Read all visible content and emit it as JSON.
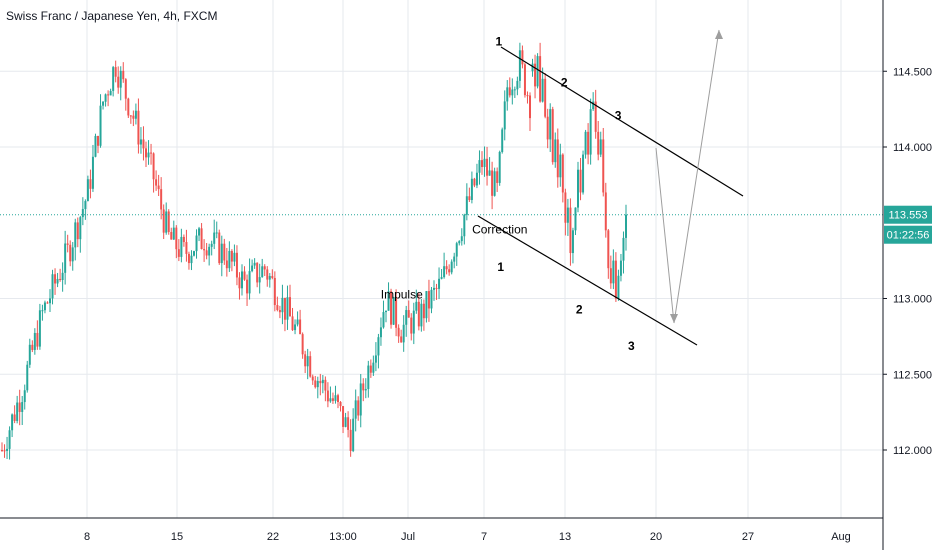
{
  "chart_data": {
    "type": "candlestick",
    "title": "Swiss Franc / Japanese Yen, 4h, FXCM",
    "x_ticks": [
      "8",
      "15",
      "22",
      "13:00",
      "Jul",
      "7",
      "13",
      "20",
      "27",
      "Aug"
    ],
    "y_ticks": [
      "114.500",
      "114.000",
      "113.000",
      "112.500",
      "112.000"
    ],
    "ylim": [
      111.6,
      115.0
    ],
    "grid": true,
    "current_price": {
      "value": 113.553,
      "label": "113.553",
      "countdown": "01:22:56"
    },
    "colors": {
      "up": "#26a69a",
      "down": "#ef5350",
      "price_line": "#26a69a",
      "grid": "#e6e9ee",
      "lines": "#000000",
      "projection": "#9e9e9e"
    },
    "candle_count": 210,
    "anchors": [
      [
        0,
        112.0
      ],
      [
        8,
        112.4
      ],
      [
        16,
        112.9
      ],
      [
        26,
        113.3
      ],
      [
        34,
        113.7
      ],
      [
        40,
        114.3
      ],
      [
        45,
        114.55
      ],
      [
        54,
        114.1
      ],
      [
        60,
        113.8
      ],
      [
        66,
        113.4
      ],
      [
        72,
        113.3
      ],
      [
        80,
        113.4
      ],
      [
        88,
        113.3
      ],
      [
        96,
        113.1
      ],
      [
        104,
        113.2
      ],
      [
        110,
        113.0
      ],
      [
        116,
        112.8
      ],
      [
        124,
        112.5
      ],
      [
        132,
        112.3
      ],
      [
        138,
        112.1
      ],
      [
        146,
        112.6
      ],
      [
        152,
        113.0
      ],
      [
        158,
        112.8
      ],
      [
        166,
        112.9
      ],
      [
        174,
        113.1
      ],
      [
        182,
        113.5
      ],
      [
        190,
        113.9
      ],
      [
        196,
        113.7
      ],
      [
        200,
        114.4
      ],
      [
        205,
        114.55
      ],
      [
        209,
        114.3
      ]
    ],
    "series": [
      {
        "name": "",
        "points": [
          [
            114.5,
            114.55
          ],
          [
            114.55,
            114.4
          ],
          [
            114.4,
            114.6
          ],
          [
            114.6,
            114.3
          ],
          [
            114.3,
            114.45
          ],
          [
            114.45,
            114.2
          ],
          [
            114.2,
            114.05
          ],
          [
            114.05,
            114.25
          ],
          [
            114.25,
            113.9
          ],
          [
            113.9,
            114.05
          ],
          [
            114.05,
            113.8
          ],
          [
            113.8,
            113.95
          ],
          [
            113.95,
            113.7
          ],
          [
            113.7,
            113.5
          ],
          [
            113.5,
            113.6
          ],
          [
            113.6,
            113.3
          ],
          [
            113.3,
            113.45
          ],
          [
            113.45,
            113.6
          ],
          [
            113.6,
            113.85
          ],
          [
            113.85,
            113.7
          ],
          [
            113.7,
            113.95
          ],
          [
            113.95,
            114.1
          ],
          [
            114.1,
            113.95
          ],
          [
            113.95,
            114.25
          ],
          [
            114.25,
            114.3
          ],
          [
            114.3,
            114.1
          ],
          [
            114.1,
            113.95
          ],
          [
            113.95,
            114.05
          ],
          [
            114.05,
            113.7
          ],
          [
            113.7,
            113.45
          ],
          [
            113.45,
            113.2
          ],
          [
            113.2,
            113.1
          ],
          [
            113.1,
            113.25
          ],
          [
            113.25,
            113.0
          ],
          [
            113.0,
            113.15
          ],
          [
            113.15,
            113.25
          ],
          [
            113.25,
            113.4
          ],
          [
            113.4,
            113.553
          ]
        ]
      }
    ],
    "annotations": [
      {
        "text": "1",
        "x_at": 0.565,
        "price": 114.67
      },
      {
        "text": "2",
        "x_at": 0.639,
        "price": 114.4
      },
      {
        "text": "3",
        "x_at": 0.7,
        "price": 114.18
      },
      {
        "text": "Correction",
        "x_at": 0.566,
        "price": 113.43
      },
      {
        "text": "1",
        "x_at": 0.567,
        "price": 113.18
      },
      {
        "text": "2",
        "x_at": 0.656,
        "price": 112.9
      },
      {
        "text": "3",
        "x_at": 0.715,
        "price": 112.66
      },
      {
        "text": "Impulse",
        "x_at": 0.455,
        "price": 113.0
      }
    ]
  }
}
